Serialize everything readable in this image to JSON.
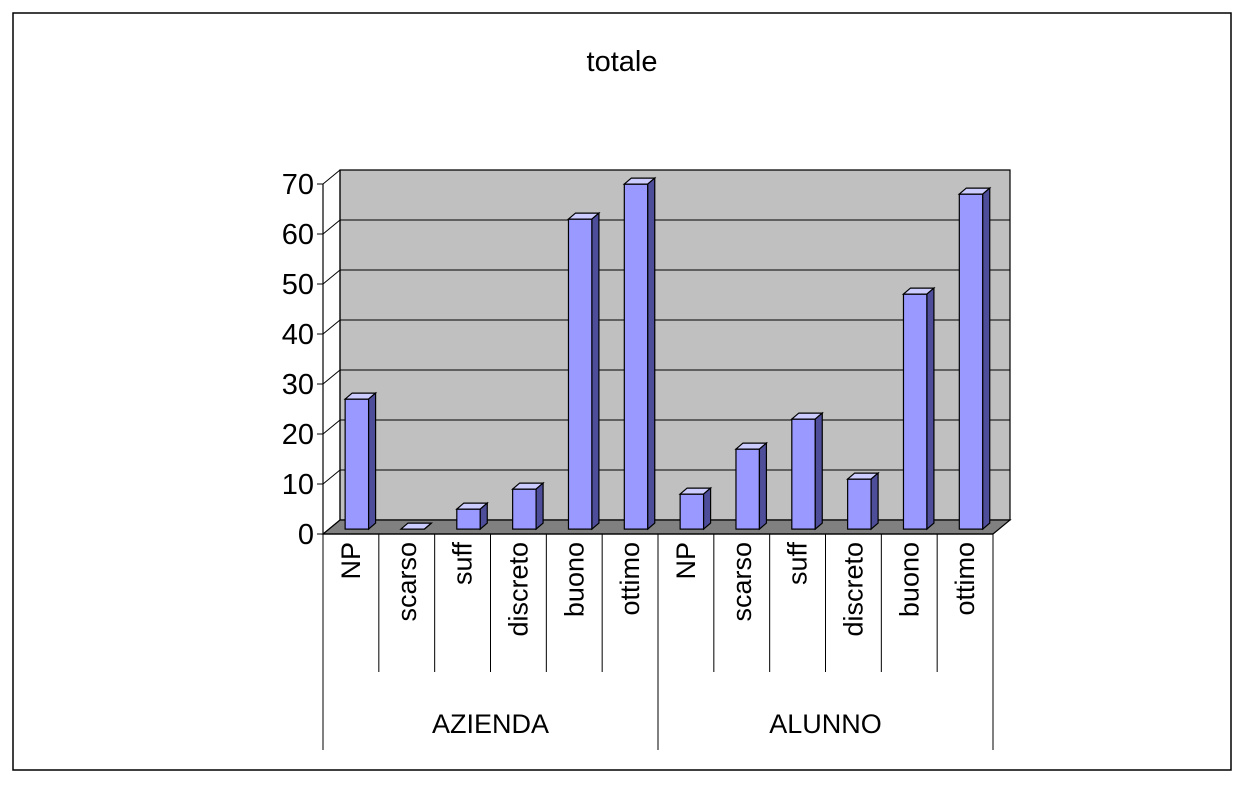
{
  "chart_data": {
    "type": "bar",
    "title": "totale",
    "xlabel": "",
    "ylabel": "",
    "ylim": [
      0,
      70
    ],
    "yticks": [
      0,
      10,
      20,
      30,
      40,
      50,
      60,
      70
    ],
    "grid": true,
    "legend": "none",
    "groups": [
      {
        "name": "AZIENDA",
        "categories": [
          "NP",
          "scarso",
          "suff",
          "discreto",
          "buono",
          "ottimo"
        ],
        "values": [
          26,
          0,
          4,
          8,
          62,
          69
        ]
      },
      {
        "name": "ALUNNO",
        "categories": [
          "NP",
          "scarso",
          "suff",
          "discreto",
          "buono",
          "ottimo"
        ],
        "values": [
          7,
          16,
          22,
          10,
          47,
          67
        ]
      }
    ],
    "colors": {
      "bar_front": "#9999ff",
      "bar_top": "#ccccff",
      "bar_side": "#4d4d99",
      "wall": "#c0c0c0",
      "floor": "#808080",
      "gridline": "#000000"
    }
  }
}
